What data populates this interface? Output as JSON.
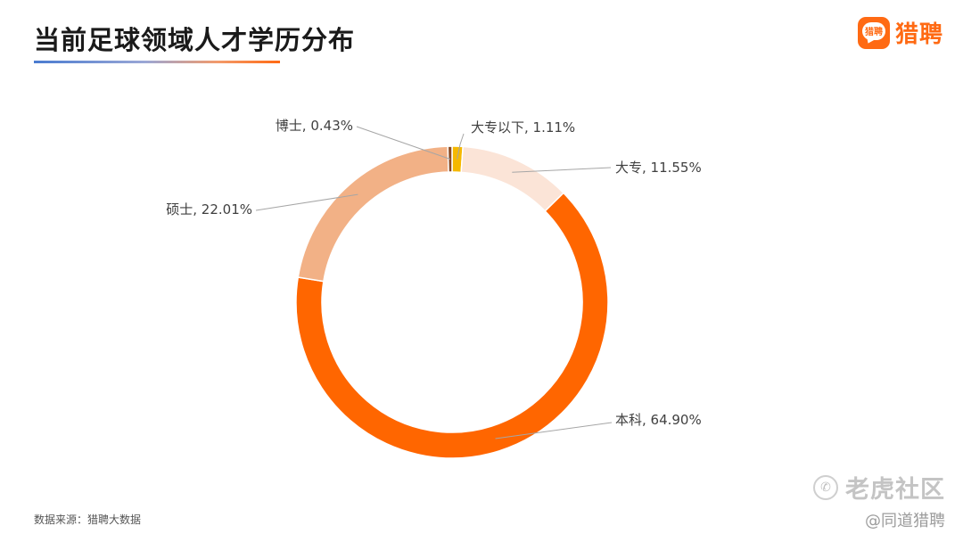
{
  "header": {
    "title": "当前足球领域人才学历分布",
    "brand_logo_text": "猎聘",
    "brand_name": "猎聘"
  },
  "chart_data": {
    "type": "pie",
    "donut": true,
    "categories": [
      "大专以下",
      "大专",
      "本科",
      "硕士",
      "博士"
    ],
    "values": [
      1.11,
      11.55,
      64.9,
      22.01,
      0.43
    ],
    "data_labels": [
      "大专以下, 1.11%",
      "大专, 11.55%",
      "本科, 64.90%",
      "硕士, 22.01%",
      "博士, 0.43%"
    ],
    "colors": [
      "#f5b800",
      "#fbe4d7",
      "#ff6600",
      "#f2b186",
      "#8a4a22"
    ],
    "label_placement": "outside with leader lines",
    "legend": "none"
  },
  "footer": {
    "source": "数据来源：猎聘大数据",
    "watermark": "老虎社区",
    "credit": "@同道猎聘"
  },
  "icons": {
    "brand": "speech-bubble-logo-icon",
    "watermark": "tiger-community-icon"
  }
}
